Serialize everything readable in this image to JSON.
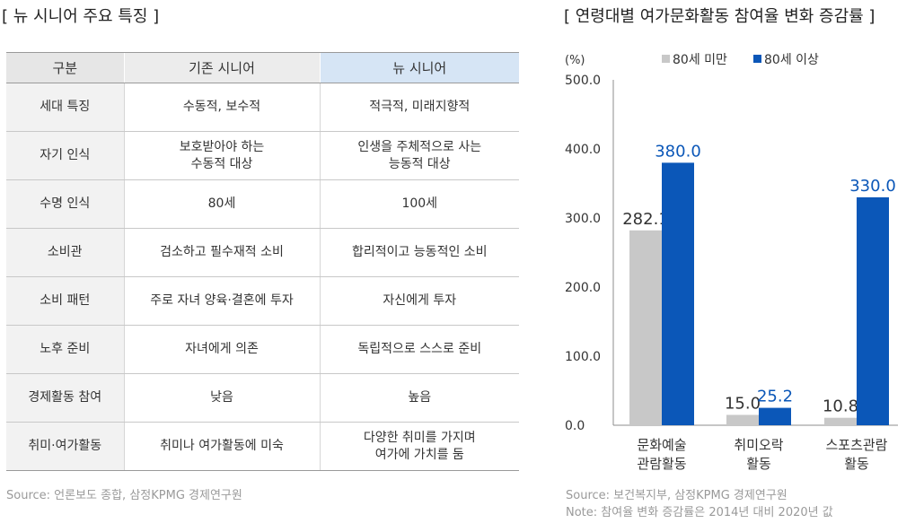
{
  "left": {
    "title": "[ 뉴 시니어 주요 특징 ]",
    "table": {
      "headers": [
        "구분",
        "기존 시니어",
        "뉴 시니어"
      ],
      "rows": [
        [
          "세대 특징",
          "수동적, 보수적",
          "적극적, 미래지향적"
        ],
        [
          "자기 인식",
          "보호받아야 하는\n수동적 대상",
          "인생을 주체적으로 사는\n능동적 대상"
        ],
        [
          "수명 인식",
          "80세",
          "100세"
        ],
        [
          "소비관",
          "검소하고 필수재적 소비",
          "합리적이고 능동적인 소비"
        ],
        [
          "소비 패턴",
          "주로 자녀 양육·결혼에 투자",
          "자신에게 투자"
        ],
        [
          "노후 준비",
          "자녀에게 의존",
          "독립적으로 스스로 준비"
        ],
        [
          "경제활동 참여",
          "낮음",
          "높음"
        ],
        [
          "취미·여가활동",
          "취미나 여가활동에 미숙",
          "다양한 취미를 가지며\n여가에 가치를 둠"
        ]
      ]
    },
    "source": "Source: 언론보도 종합, 삼정KPMG 경제연구원"
  },
  "right": {
    "title": "[ 연령대별 여가문화활동 참여율 변화 증감률 ]",
    "source": "Source: 보건복지부, 삼정KPMG 경제연구원",
    "note": "Note: 참여율 변화 증감률은 2014년 대비 2020년 값"
  },
  "chart_data": {
    "type": "bar",
    "title": "[ 연령대별 여가문화활동 참여율 변화 증감률 ]",
    "unit_label": "(%)",
    "categories": [
      [
        "문화예술",
        "관람활동"
      ],
      [
        "취미오락",
        "활동"
      ],
      [
        "스포츠관람",
        "활동"
      ]
    ],
    "series": [
      {
        "name": "80세 미만",
        "color": "#c8c8c8",
        "label_color": "#333333",
        "values": [
          282.1,
          15.0,
          10.8
        ]
      },
      {
        "name": "80세 이상",
        "color": "#0b57b8",
        "label_color": "#0b57b8",
        "values": [
          380.0,
          25.2,
          330.0
        ]
      }
    ],
    "ylim": [
      0,
      500
    ],
    "yticks": [
      0,
      100,
      200,
      300,
      400,
      500
    ],
    "ytick_labels": [
      "0.0",
      "100.0",
      "200.0",
      "300.0",
      "400.0",
      "500.0"
    ],
    "grid": false,
    "legend": "top"
  }
}
